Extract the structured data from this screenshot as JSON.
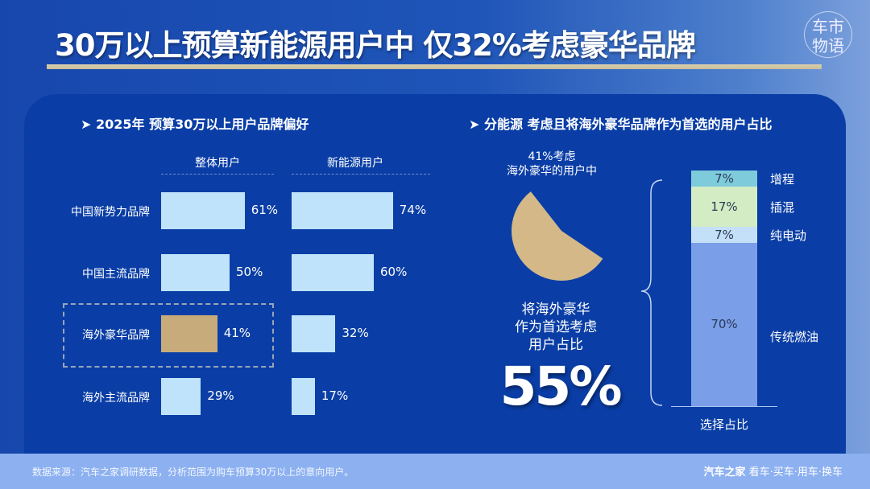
{
  "header": {
    "title": "30万以上预算新能源用户中 仅32%考虑豪华品牌",
    "logo_text": "车市物语"
  },
  "footer": {
    "source": "数据来源：汽车之家调研数据，分析范围为购车预算30万以上的意向用户。",
    "brand": "汽车之家",
    "slogan": "看车·买车·用车·换车"
  },
  "colors": {
    "bar": "#bfe3fb",
    "highlight": "#c8ab7a",
    "pie": "#d4b888",
    "ext": "#7ecbdc",
    "phev": "#d3ecc3",
    "bev": "#c4e0f8",
    "ice": "#7a9ee8"
  },
  "chart_data": [
    {
      "type": "bar",
      "title": "2025年 预算30万以上用户品牌偏好",
      "orientation": "horizontal",
      "categories": [
        "中国新势力品牌",
        "中国主流品牌",
        "海外豪华品牌",
        "海外主流品牌"
      ],
      "highlight": "海外豪华品牌",
      "series": [
        {
          "name": "整体用户",
          "values": [
            61,
            50,
            41,
            29
          ],
          "labels": [
            "61%",
            "50%",
            "41%",
            "29%"
          ]
        },
        {
          "name": "新能源用户",
          "values": [
            74,
            60,
            32,
            17
          ],
          "labels": [
            "74%",
            "60%",
            "32%",
            "17%"
          ]
        }
      ]
    },
    {
      "type": "pie",
      "title": "分能源 考虑且将海外豪华品牌作为首选的用户占比",
      "caption": "41%考虑\n海外豪华的用户中",
      "caption_lines": [
        "41%考虑",
        "海外豪华的用户中"
      ],
      "value": 55,
      "label_lines": [
        "将海外豪华",
        "作为首选考虑",
        "用户占比"
      ],
      "big_label": "55%"
    },
    {
      "type": "bar",
      "stacked": true,
      "categories": [
        "选择占比"
      ],
      "series": [
        {
          "name": "传统燃油",
          "values": [
            70
          ],
          "label": "70%"
        },
        {
          "name": "纯电动",
          "values": [
            7
          ],
          "label": "7%"
        },
        {
          "name": "插混",
          "values": [
            17
          ],
          "label": "17%"
        },
        {
          "name": "增程",
          "values": [
            7
          ],
          "label": "7%"
        }
      ]
    }
  ]
}
